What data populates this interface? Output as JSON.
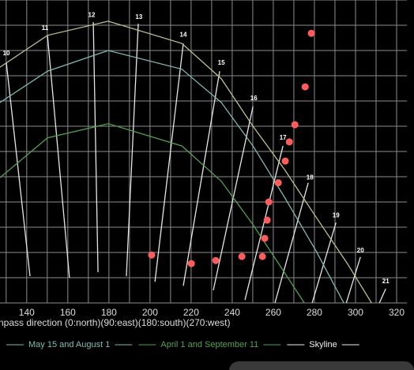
{
  "chart_data": {
    "type": "line",
    "x_label": "npass direction (0:north)(90:east)(180:south)(270:west)",
    "xlim": [
      127,
      325
    ],
    "xticks": [
      140,
      160,
      180,
      200,
      220,
      240,
      260,
      280,
      300,
      320
    ],
    "ylim": [
      0,
      60
    ],
    "grid": true,
    "series": [
      {
        "color": "#b9c38c",
        "x": [
          127,
          150.1,
          179.7,
          215.5,
          234.7,
          250.1,
          265.5,
          280.8,
          296.2,
          307.8
        ],
        "values": [
          46.7,
          53.0,
          55.8,
          51.4,
          44.4,
          35.0,
          26.4,
          17.0,
          7.7,
          0
        ]
      },
      {
        "name": "May 15 and August 1",
        "color": "#7fbab4",
        "x": [
          127,
          150.1,
          179.7,
          215.5,
          234.7,
          250.1,
          265.5,
          280.8,
          294.3
        ],
        "values": [
          39.7,
          45.9,
          50.0,
          46.3,
          39.7,
          31.1,
          20.9,
          10.3,
          0
        ]
      },
      {
        "name": "April 1 and September 11",
        "color": "#53a050",
        "x": [
          127,
          150.1,
          179.7,
          215.5,
          234.7,
          250.1,
          261.6,
          275.1
        ],
        "values": [
          24.8,
          32.7,
          35.5,
          31.1,
          24.1,
          15.5,
          8.4,
          0
        ]
      }
    ],
    "points": {
      "name": "Skyline",
      "color": "#ff5c5c",
      "legend_color": "#eeeeee",
      "x": [
        278.5,
        275.5,
        270.5,
        267.8,
        265.8,
        262.4,
        257.8,
        257.0,
        255.8,
        254.7,
        244.7,
        232.0,
        220.1,
        200.8
      ],
      "values": [
        53.4,
        42.8,
        35.3,
        31.9,
        28.1,
        23.8,
        20.0,
        16.4,
        12.8,
        9.2,
        9.2,
        8.4,
        7.8,
        9.5
      ]
    },
    "hours": {
      "labels": [
        "10",
        "11",
        "12",
        "13",
        "14",
        "15",
        "16",
        "17",
        "18",
        "19",
        "20",
        "21"
      ],
      "x": [
        130.1,
        148.9,
        171.6,
        194.6,
        216.2,
        234.7,
        250.5,
        264.7,
        277.8,
        290.5,
        302.4,
        314.7
      ],
      "y": [
        49.4,
        54.4,
        57.0,
        56.6,
        53.1,
        47.5,
        40.5,
        32.7,
        24.8,
        17.3,
        10.3,
        4.2
      ],
      "x1": [
        130.1,
        150.1,
        172.4,
        194.3,
        216.2,
        233.9,
        250.1,
        264.7,
        277.0,
        290.5,
        302.4,
        314.7
      ],
      "y1": [
        47.5,
        53.0,
        55.6,
        55.3,
        51.4,
        45.9,
        38.9,
        31.1,
        23.8,
        15.9,
        9.1,
        2.8
      ],
      "x2": [
        141.6,
        160.8,
        174.7,
        188.5,
        202.4,
        216.2,
        230.8,
        246.2,
        260.8,
        278.9,
        295.5,
        311.6
      ],
      "y2": [
        5.3,
        5.0,
        6.1,
        5.3,
        4.2,
        3.4,
        2.5,
        0.6,
        0,
        0,
        0,
        0
      ]
    }
  }
}
